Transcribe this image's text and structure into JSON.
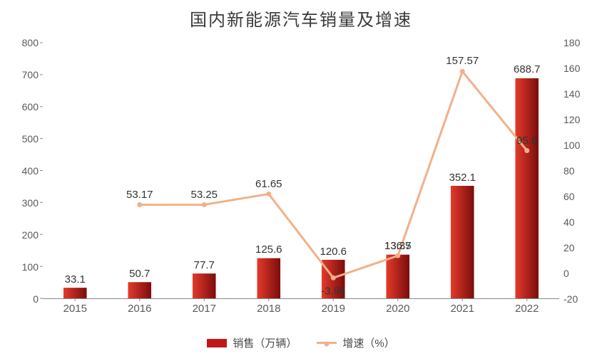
{
  "chart": {
    "type": "bar+line",
    "title": "国内新能源汽车销量及增速",
    "title_fontsize": 24,
    "title_color": "#3a3a3a",
    "background_color": "#ffffff",
    "axis_color": "#8a8a8a",
    "label_fontsize": 14,
    "data_label_fontsize": 15,
    "categories": [
      "2015",
      "2016",
      "2017",
      "2018",
      "2019",
      "2020",
      "2021",
      "2022"
    ],
    "series_bar": {
      "name": "销售（万辆）",
      "values": [
        33.1,
        50.7,
        77.7,
        125.6,
        120.6,
        136.7,
        352.1,
        688.7
      ],
      "labels": [
        "33.1",
        "50.7",
        "77.7",
        "125.6",
        "120.6",
        "136.7",
        "352.1",
        "688.7"
      ],
      "color_top": "#e43a2a",
      "color_bottom": "#7a0d0d",
      "bar_width_ratio": 0.36
    },
    "series_line": {
      "name": "增速（%）",
      "values": [
        null,
        53.17,
        53.25,
        61.65,
        -3.98,
        13.35,
        157.57,
        95.6
      ],
      "labels": [
        null,
        "53.17",
        "53.25",
        "61.65",
        "-3.98",
        "13.35",
        "157.57",
        "95.6"
      ],
      "color": "#f2b089",
      "line_width": 3,
      "marker_size": 7
    },
    "y_left": {
      "min": 0,
      "max": 800,
      "step": 100
    },
    "y_right": {
      "min": -20,
      "max": 180,
      "step": 20
    },
    "legend": {
      "items": [
        {
          "kind": "bar",
          "label": "销售（万辆）",
          "color": "#c01818"
        },
        {
          "kind": "line",
          "label": "增速（%）",
          "color": "#f2b089"
        }
      ]
    }
  }
}
